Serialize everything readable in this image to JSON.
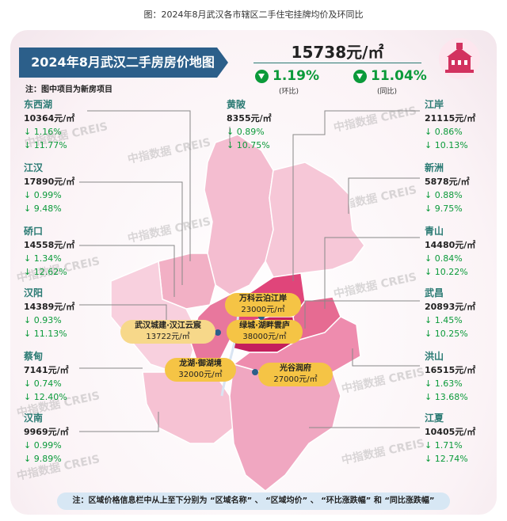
{
  "caption": "图：2024年8月武汉各市辖区二手住宅挂牌均价及环同比",
  "title": "2024年8月武汉二手房房价地图",
  "note": "注：图中项目为新房项目",
  "average": {
    "price": "15738元/㎡",
    "mom": {
      "value": "1.19%",
      "label": "(环比)"
    },
    "yoy": {
      "value": "11.04%",
      "label": "(同比)"
    }
  },
  "colors": {
    "accent": "#2a7a73",
    "banner": "#2c5f8a",
    "down": "#0b9a3a",
    "project": "#f5c445"
  },
  "districts": [
    {
      "name": "东西湖",
      "price": "10364元/㎡",
      "mom": "↓ 1.16%",
      "yoy": "↓ 11.77%"
    },
    {
      "name": "江汉",
      "price": "17890元/㎡",
      "mom": "↓ 0.99%",
      "yoy": "↓ 9.48%"
    },
    {
      "name": "硚口",
      "price": "14558元/㎡",
      "mom": "↓ 1.34%",
      "yoy": "↓ 12.62%"
    },
    {
      "name": "汉阳",
      "price": "14389元/㎡",
      "mom": "↓ 0.93%",
      "yoy": "↓ 11.13%"
    },
    {
      "name": "蔡甸",
      "price": "7141元/㎡",
      "mom": "↓ 0.74%",
      "yoy": "↓ 12.40%"
    },
    {
      "name": "汉南",
      "price": "9969元/㎡",
      "mom": "↓ 0.99%",
      "yoy": "↓ 9.89%"
    },
    {
      "name": "黄陂",
      "price": "8355元/㎡",
      "mom": "↓ 0.89%",
      "yoy": "↓ 10.75%"
    },
    {
      "name": "江岸",
      "price": "21115元/㎡",
      "mom": "↓ 0.86%",
      "yoy": "↓ 10.13%"
    },
    {
      "name": "新洲",
      "price": "5878元/㎡",
      "mom": "↓ 0.88%",
      "yoy": "↓ 9.75%"
    },
    {
      "name": "青山",
      "price": "14480元/㎡",
      "mom": "↓ 0.84%",
      "yoy": "↓ 10.22%"
    },
    {
      "name": "武昌",
      "price": "20893元/㎡",
      "mom": "↓ 1.45%",
      "yoy": "↓ 10.25%"
    },
    {
      "name": "洪山",
      "price": "16515元/㎡",
      "mom": "↓ 1.63%",
      "yoy": "↓ 13.68%"
    },
    {
      "name": "江夏",
      "price": "10405元/㎡",
      "mom": "↓ 1.71%",
      "yoy": "↓ 12.74%"
    }
  ],
  "projects": [
    {
      "name": "万科云泊江岸",
      "price": "23000元/㎡"
    },
    {
      "name": "武汉城建·汉江云宸",
      "price": "13722元/㎡"
    },
    {
      "name": "绿城·湖畔雲庐",
      "price": "38000元/㎡"
    },
    {
      "name": "龙湖·御湖境",
      "price": "32000元/㎡"
    },
    {
      "name": "光谷润府",
      "price": "27000元/㎡"
    }
  ],
  "watermark": "中指数据 CREIS",
  "footer": "注：区域价格信息栏中从上至下分别为 “区域名称” 、 “区域均价” 、 “环比涨跌幅” 和 “同比涨跌幅”"
}
